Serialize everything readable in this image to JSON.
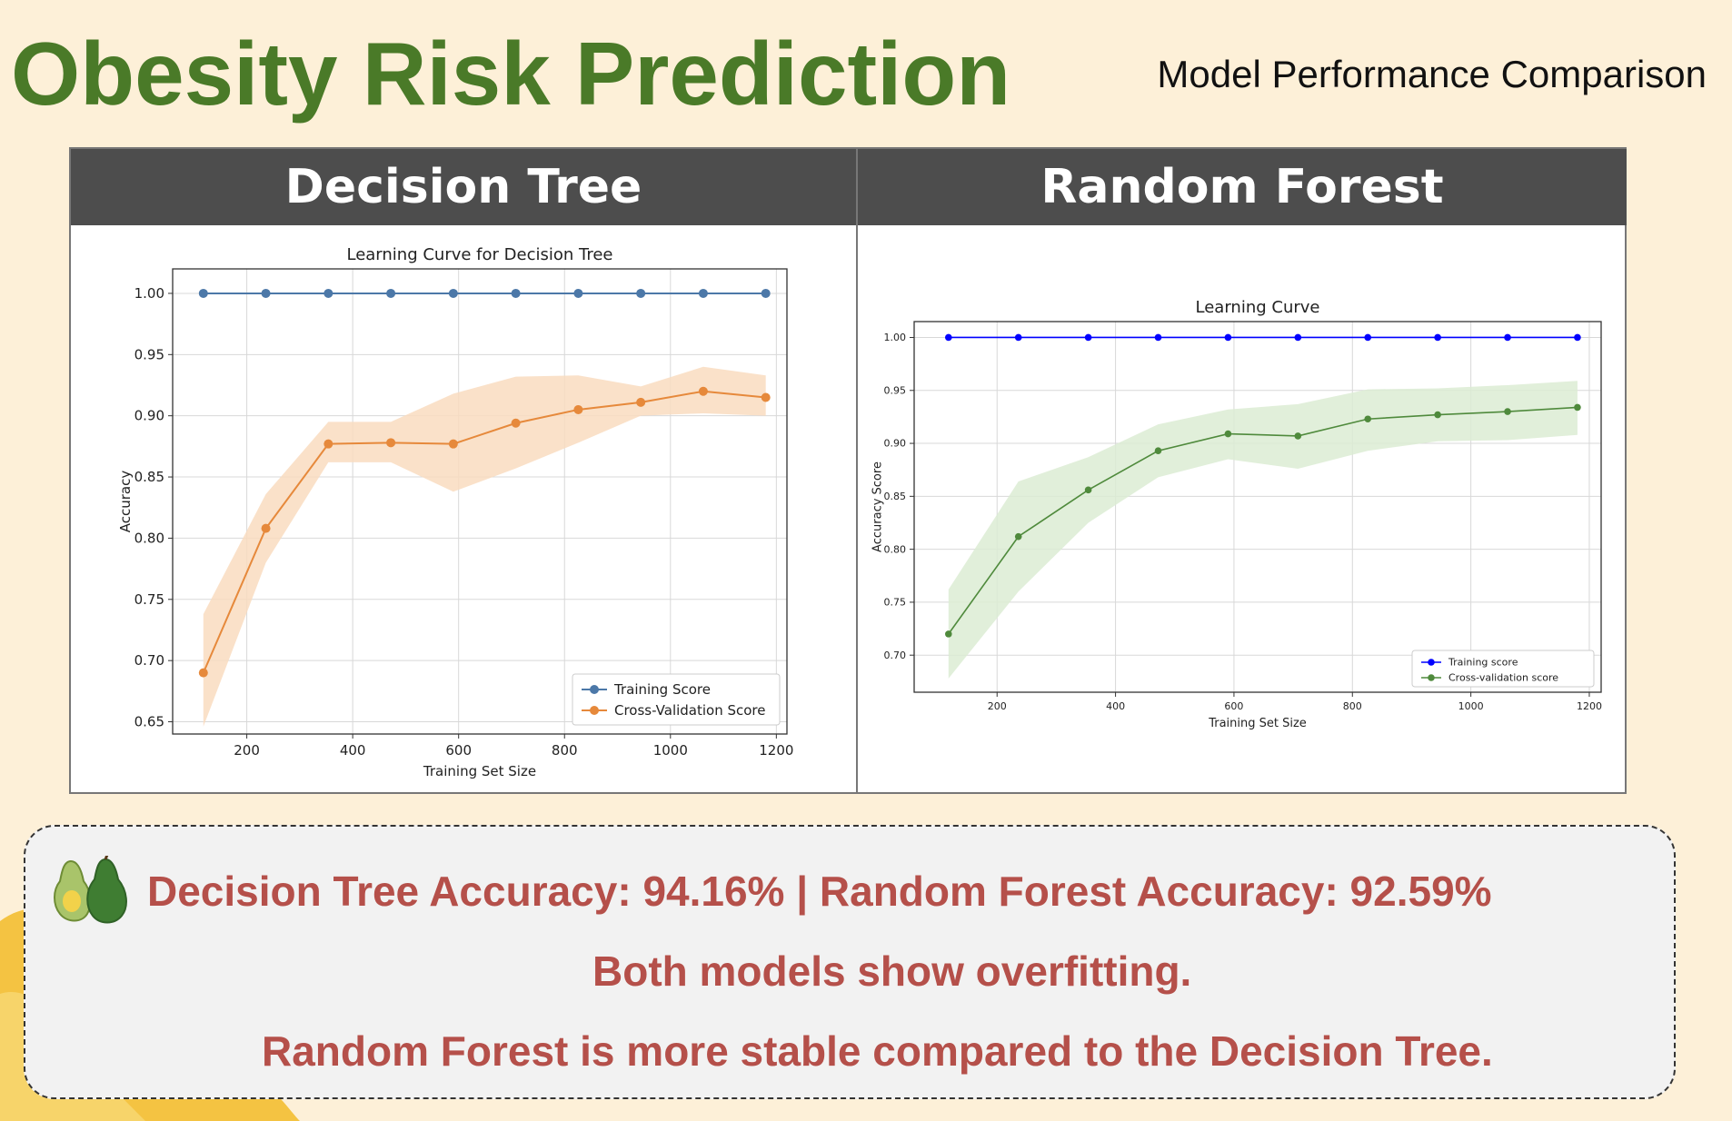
{
  "page": {
    "title": "Obesity Risk Prediction",
    "subtitle": "Model Performance Comparison"
  },
  "panels": {
    "decision_tree_header": "Decision Tree",
    "random_forest_header": "Random Forest"
  },
  "summary": {
    "line1": "Decision Tree Accuracy: 94.16% | Random Forest Accuracy: 92.59%",
    "line2": "Both models show overfitting.",
    "line3": "Random Forest is more stable compared to the Decision Tree.",
    "icon": "avocado-icon"
  },
  "colors": {
    "title": "#4a7a28",
    "summary_text": "#b5504a",
    "header_bg": "#4d4d4d"
  },
  "chart_data": [
    {
      "type": "line",
      "title": "Learning Curve for Decision Tree",
      "xlabel": "Training Set Size",
      "ylabel": "Accuracy",
      "xlim": [
        60,
        1220
      ],
      "ylim": [
        0.64,
        1.02
      ],
      "xticks": [
        200,
        400,
        600,
        800,
        1000,
        1200
      ],
      "yticks": [
        0.65,
        0.7,
        0.75,
        0.8,
        0.85,
        0.9,
        0.95,
        1.0
      ],
      "ytick_labels": [
        "0.65",
        "0.70",
        "0.75",
        "0.80",
        "0.85",
        "0.90",
        "0.95",
        "1.00"
      ],
      "grid": true,
      "legend": "lower-right",
      "x": [
        118,
        236,
        354,
        472,
        590,
        708,
        826,
        944,
        1062,
        1180
      ],
      "series": [
        {
          "name": "Training Score",
          "color": "#4c78a8",
          "values": [
            1.0,
            1.0,
            1.0,
            1.0,
            1.0,
            1.0,
            1.0,
            1.0,
            1.0,
            1.0
          ]
        },
        {
          "name": "Cross-Validation Score",
          "color": "#e6893b",
          "band_color": "#f9dcc0",
          "values": [
            0.69,
            0.808,
            0.877,
            0.878,
            0.877,
            0.894,
            0.905,
            0.911,
            0.92,
            0.915
          ],
          "band_lower": [
            0.646,
            0.78,
            0.862,
            0.862,
            0.838,
            0.857,
            0.878,
            0.9,
            0.902,
            0.9
          ],
          "band_upper": [
            0.738,
            0.836,
            0.895,
            0.895,
            0.918,
            0.932,
            0.933,
            0.924,
            0.94,
            0.933
          ]
        }
      ]
    },
    {
      "type": "line",
      "title": "Learning Curve",
      "xlabel": "Training Set Size",
      "ylabel": "Accuracy Score",
      "xlim": [
        60,
        1220
      ],
      "ylim": [
        0.665,
        1.015
      ],
      "xticks": [
        200,
        400,
        600,
        800,
        1000,
        1200
      ],
      "yticks": [
        0.7,
        0.75,
        0.8,
        0.85,
        0.9,
        0.95,
        1.0
      ],
      "ytick_labels": [
        "0.70",
        "0.75",
        "0.80",
        "0.85",
        "0.90",
        "0.95",
        "1.00"
      ],
      "grid": true,
      "legend": "lower-right",
      "x": [
        118,
        236,
        354,
        472,
        590,
        708,
        826,
        944,
        1062,
        1180
      ],
      "series": [
        {
          "name": "Training score",
          "color": "#0000ff",
          "values": [
            1.0,
            1.0,
            1.0,
            1.0,
            1.0,
            1.0,
            1.0,
            1.0,
            1.0,
            1.0
          ]
        },
        {
          "name": "Cross-validation score",
          "color": "#4f8a3c",
          "band_color": "#dcecd4",
          "values": [
            0.72,
            0.812,
            0.856,
            0.893,
            0.909,
            0.907,
            0.923,
            0.927,
            0.93,
            0.934
          ],
          "band_lower": [
            0.678,
            0.76,
            0.825,
            0.868,
            0.885,
            0.876,
            0.893,
            0.902,
            0.903,
            0.908
          ],
          "band_upper": [
            0.762,
            0.864,
            0.887,
            0.918,
            0.932,
            0.937,
            0.951,
            0.952,
            0.955,
            0.959
          ]
        }
      ]
    }
  ]
}
